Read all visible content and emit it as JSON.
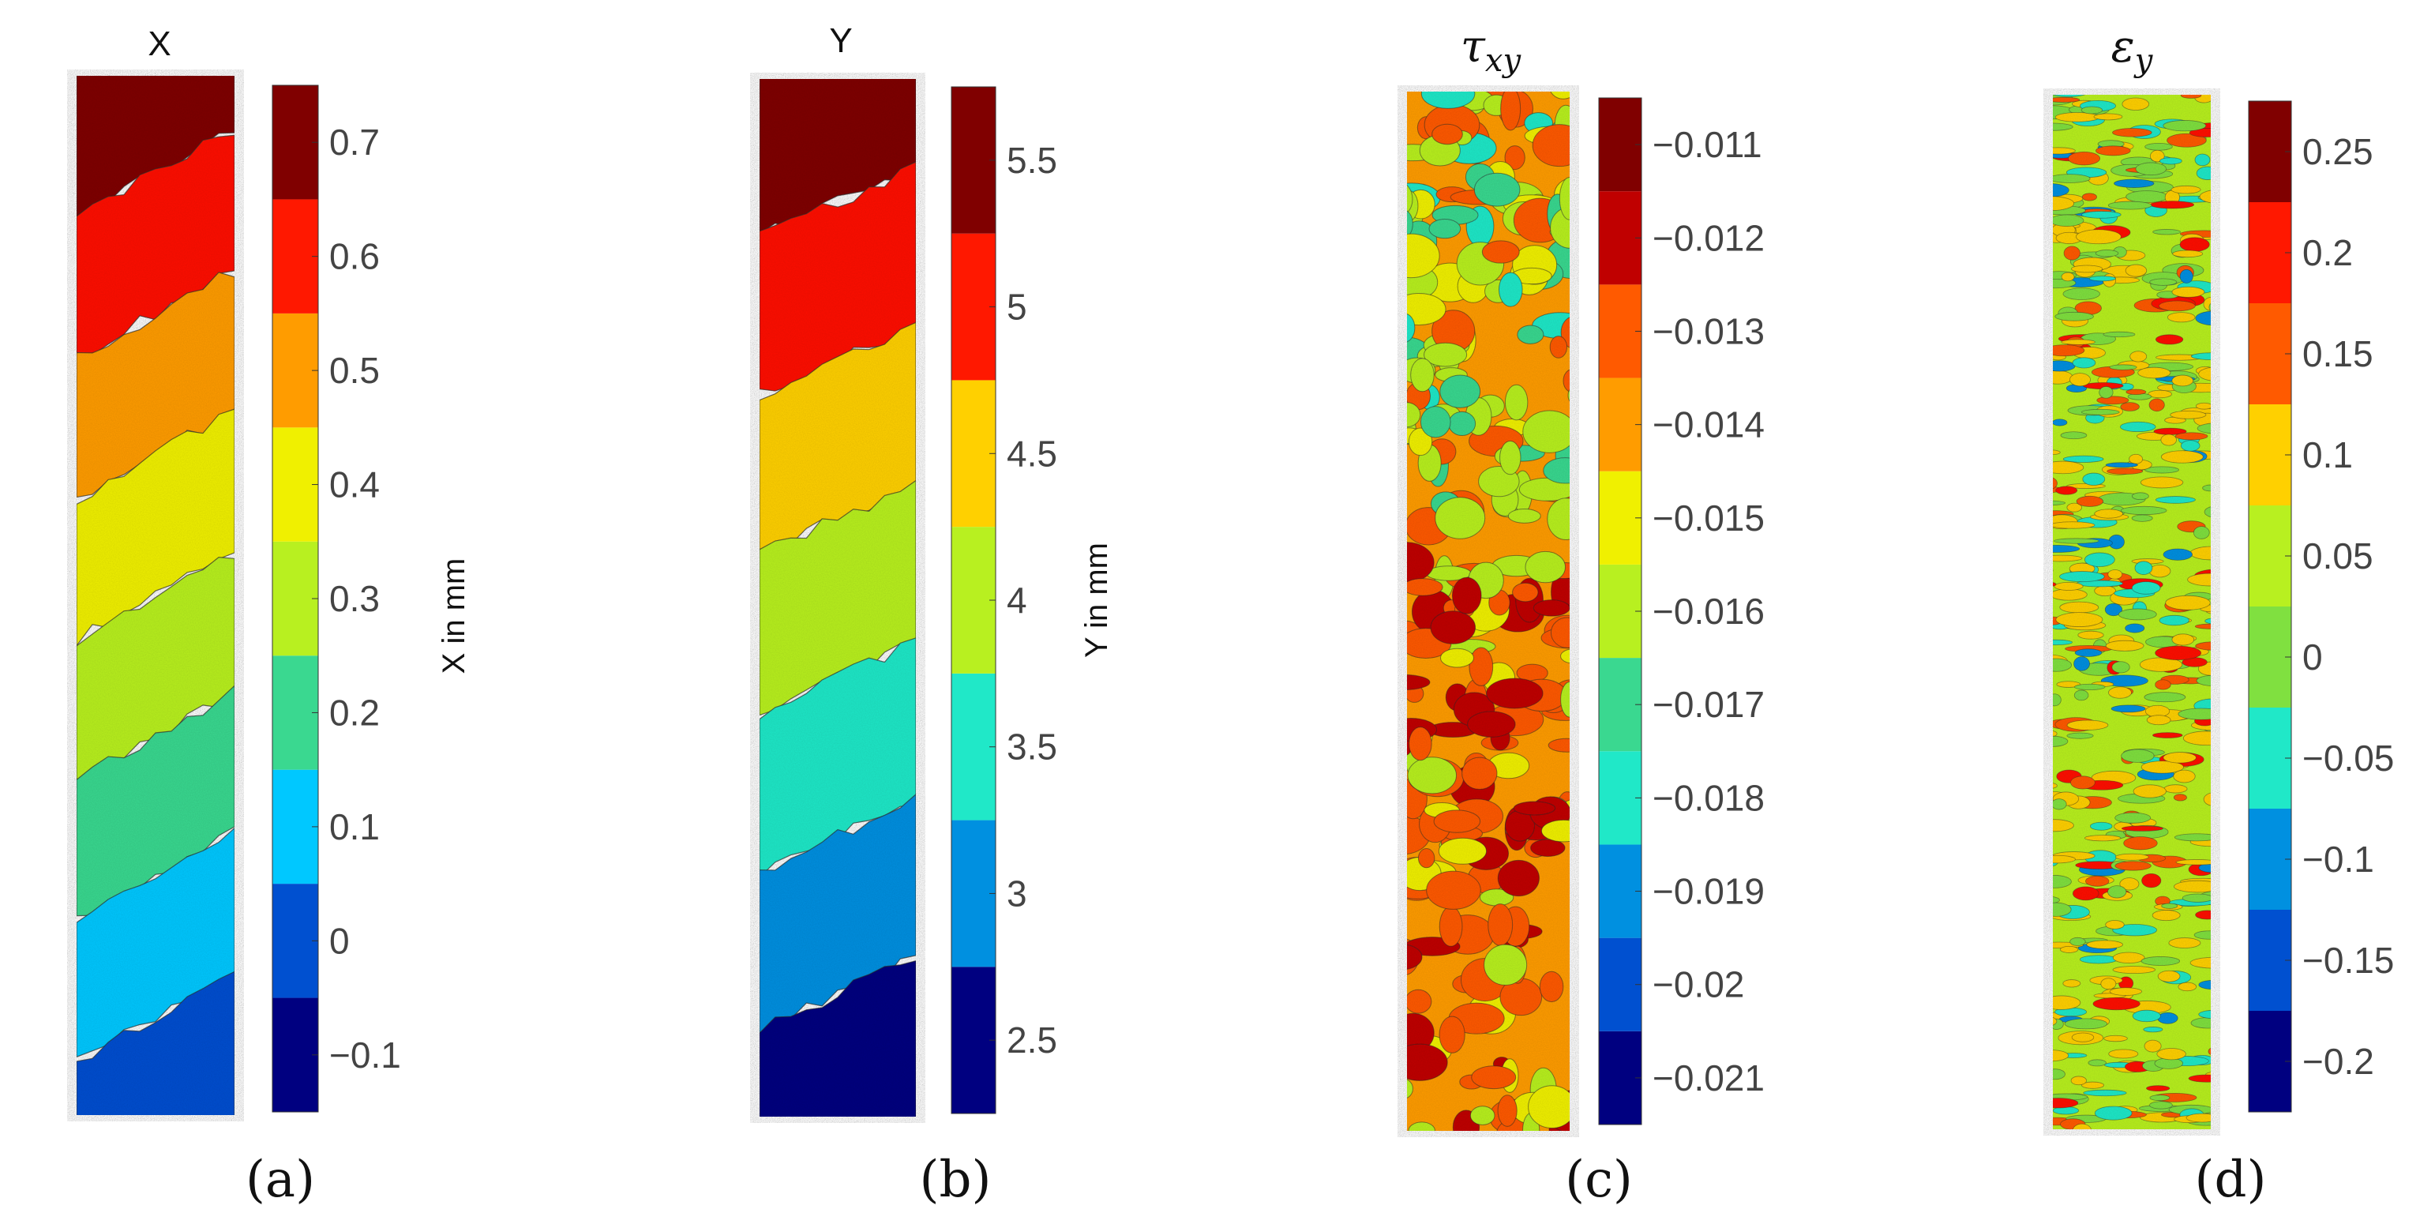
{
  "figure": {
    "description_labels": [
      "(a)",
      "(b)",
      "(c)",
      "(d)"
    ]
  },
  "chart_data": [
    {
      "type": "heatmap",
      "panel_label": "(a)",
      "title": "X",
      "colorbar_label": "X in mm",
      "colorbar_ticks": [
        -0.1,
        0,
        0.1,
        0.2,
        0.3,
        0.4,
        0.5,
        0.6,
        0.7
      ],
      "colorbar_tick_labels": [
        "−0.1",
        "0",
        "0.1",
        "0.2",
        "0.3",
        "0.4",
        "0.5",
        "0.6",
        "0.7"
      ],
      "clim": [
        -0.15,
        0.75
      ],
      "levels": 9,
      "pattern": "diagonal bands increasing toward top-left"
    },
    {
      "type": "heatmap",
      "panel_label": "(b)",
      "title": "Y",
      "colorbar_label": "Y in mm",
      "colorbar_ticks": [
        2.5,
        3,
        3.5,
        4,
        4.5,
        5,
        5.5
      ],
      "colorbar_tick_labels": [
        "2.5",
        "3",
        "3.5",
        "4",
        "4.5",
        "5",
        "5.5"
      ],
      "clim": [
        2.25,
        5.75
      ],
      "levels": 7,
      "pattern": "diagonal bands increasing toward top"
    },
    {
      "type": "heatmap",
      "panel_label": "(c)",
      "title": "τxy",
      "title_main": "τ",
      "title_sub": "xy",
      "colorbar_label": "",
      "colorbar_ticks": [
        -0.021,
        -0.02,
        -0.019,
        -0.018,
        -0.017,
        -0.016,
        -0.015,
        -0.014,
        -0.013,
        -0.012,
        -0.011
      ],
      "colorbar_tick_labels": [
        "−0.021",
        "−0.02",
        "−0.019",
        "−0.018",
        "−0.017",
        "−0.016",
        "−0.015",
        "−0.014",
        "−0.013",
        "−0.012",
        "−0.011"
      ],
      "clim": [
        -0.0215,
        -0.0105
      ],
      "levels": 11,
      "pattern": "irregular blobs, mostly yellow/orange"
    },
    {
      "type": "heatmap",
      "panel_label": "(d)",
      "title": "εy",
      "title_main": "ε",
      "title_sub": "y",
      "colorbar_label": "",
      "colorbar_ticks": [
        -0.2,
        -0.15,
        -0.1,
        -0.05,
        0,
        0.05,
        0.1,
        0.15,
        0.2,
        0.25
      ],
      "colorbar_tick_labels": [
        "−0.2",
        "−0.15",
        "−0.1",
        "−0.05",
        "0",
        "0.05",
        "0.1",
        "0.15",
        "0.2",
        "0.25"
      ],
      "clim": [
        -0.225,
        0.275
      ],
      "levels": 10,
      "pattern": "fine horizontal streaks, mostly green/yellow"
    }
  ]
}
